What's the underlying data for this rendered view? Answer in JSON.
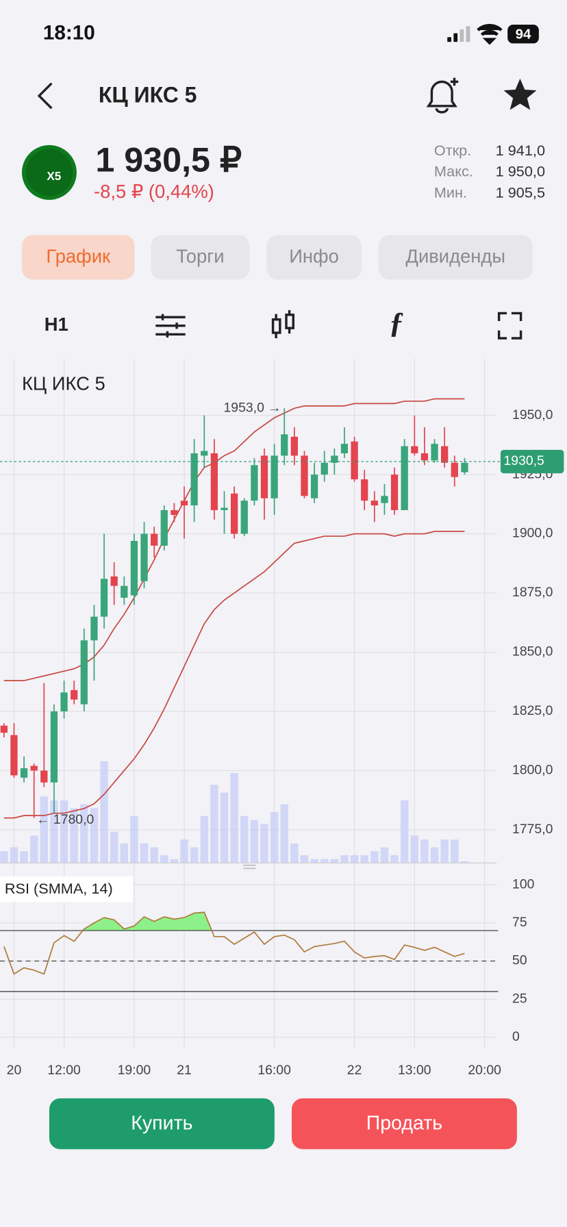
{
  "status": {
    "time": "18:10",
    "battery": "94"
  },
  "header": {
    "title": "КЦ ИКС 5"
  },
  "quote": {
    "logo": "X5",
    "price": "1 930,5 ₽",
    "change": "-8,5 ₽ (0,44%)",
    "stats": [
      {
        "label": "Откр.",
        "value": "1 941,0"
      },
      {
        "label": "Макс.",
        "value": "1 950,0"
      },
      {
        "label": "Мин.",
        "value": "1 905,5"
      }
    ]
  },
  "tabs": {
    "items": [
      "График",
      "Торги",
      "Инфо",
      "Дивиденды"
    ],
    "active": 0
  },
  "toolbar": {
    "interval": "H1"
  },
  "buttons": {
    "buy": "Купить",
    "sell": "Продать"
  },
  "chart_data": [
    {
      "type": "candlestick",
      "title": "КЦ ИКС 5",
      "open": [
        1819,
        1815,
        1797,
        1802,
        1800,
        1795,
        1825,
        1834,
        1828,
        1855,
        1865,
        1882,
        1873,
        1874,
        1880,
        1900,
        1895,
        1910,
        1914,
        1912,
        1933,
        1934,
        1910,
        1917,
        1900,
        1914,
        1933,
        1915,
        1933,
        1941,
        1933,
        1915,
        1925,
        1930,
        1934,
        1939,
        1923,
        1914,
        1913,
        1925,
        1910,
        1937,
        1934,
        1931,
        1937,
        1930,
        1926
      ],
      "high": [
        1820,
        1820,
        1806,
        1803,
        1837,
        1828,
        1838,
        1838,
        1860,
        1870,
        1900,
        1888,
        1882,
        1900,
        1905,
        1903,
        1912,
        1913,
        1920,
        1940,
        1950,
        1940,
        1918,
        1920,
        1915,
        1932,
        1936,
        1938,
        1953,
        1945,
        1935,
        1930,
        1935,
        1936,
        1945,
        1941,
        1927,
        1918,
        1921,
        1928,
        1940,
        1950,
        1945,
        1940,
        1945,
        1933,
        1932
      ],
      "low": [
        1814,
        1797,
        1795,
        1780,
        1793,
        1782,
        1822,
        1828,
        1825,
        1838,
        1860,
        1870,
        1870,
        1870,
        1877,
        1890,
        1893,
        1905,
        1898,
        1905,
        1928,
        1906,
        1900,
        1898,
        1899,
        1912,
        1906,
        1908,
        1929,
        1929,
        1915,
        1913,
        1922,
        1925,
        1932,
        1922,
        1910,
        1905,
        1908,
        1908,
        1910,
        1933,
        1929,
        1930,
        1928,
        1920,
        1925
      ],
      "close": [
        1816,
        1798,
        1801,
        1800,
        1795,
        1825,
        1833,
        1830,
        1855,
        1865,
        1881,
        1878,
        1878,
        1897,
        1900,
        1895,
        1910,
        1908,
        1912,
        1934,
        1935,
        1910,
        1911,
        1900,
        1914,
        1929,
        1915,
        1933,
        1942,
        1933,
        1916,
        1925,
        1930,
        1933,
        1938,
        1923,
        1914,
        1912,
        1916,
        1910,
        1937,
        1934,
        1931,
        1938,
        1930,
        1924,
        1930
      ],
      "volume": [
        15,
        20,
        15,
        35,
        85,
        80,
        80,
        70,
        75,
        70,
        130,
        40,
        25,
        60,
        25,
        20,
        10,
        5,
        30,
        20,
        60,
        100,
        90,
        115,
        60,
        55,
        50,
        65,
        75,
        25,
        10,
        5,
        5,
        5,
        10,
        10,
        10,
        15,
        20,
        10,
        80,
        35,
        30,
        20,
        30,
        30,
        2
      ],
      "bands": {
        "upper": [
          1838,
          1838,
          1838,
          1839,
          1840,
          1841,
          1842,
          1843,
          1845,
          1848,
          1853,
          1860,
          1866,
          1873,
          1881,
          1889,
          1898,
          1906,
          1914,
          1922,
          1928,
          1930,
          1933,
          1935,
          1939,
          1943,
          1946,
          1949,
          1951,
          1953,
          1954,
          1954,
          1954,
          1954,
          1954,
          1955,
          1955,
          1955,
          1955,
          1955,
          1956,
          1956,
          1956,
          1957,
          1957,
          1957,
          1957
        ],
        "lower": [
          1780,
          1780,
          1781,
          1781,
          1781,
          1782,
          1782,
          1783,
          1784,
          1786,
          1790,
          1795,
          1800,
          1805,
          1811,
          1818,
          1826,
          1835,
          1844,
          1853,
          1862,
          1868,
          1872,
          1875,
          1878,
          1881,
          1884,
          1888,
          1892,
          1896,
          1897,
          1898,
          1899,
          1899,
          1899,
          1900,
          1900,
          1900,
          1900,
          1899,
          1900,
          1900,
          1900,
          1901,
          1901,
          1901,
          1901
        ]
      },
      "up_color": "#3aa57a",
      "down_color": "#e3444d",
      "band_color": "#c8473d",
      "volume_color": "#c9d0f7",
      "ylim": [
        1761,
        1974
      ],
      "yticks": [
        {
          "value": 1775,
          "label": "1775,0"
        },
        {
          "value": 1800,
          "label": "1800,0"
        },
        {
          "value": 1825,
          "label": "1825,0"
        },
        {
          "value": 1850,
          "label": "1850,0"
        },
        {
          "value": 1875,
          "label": "1875,0"
        },
        {
          "value": 1900,
          "label": "1900,0"
        },
        {
          "value": 1925,
          "label": "1925,0"
        },
        {
          "value": 1950,
          "label": "1950,0"
        }
      ],
      "xlim": [
        -0.4,
        49.2
      ],
      "xticks": [
        {
          "value": 1,
          "label": "20"
        },
        {
          "value": 6,
          "label": "12:00"
        },
        {
          "value": 13,
          "label": "19:00"
        },
        {
          "value": 18,
          "label": "21"
        },
        {
          "value": 27,
          "label": "16:00"
        },
        {
          "value": 35,
          "label": "22"
        },
        {
          "value": 41,
          "label": "13:00"
        },
        {
          "value": 48,
          "label": "20:00"
        }
      ],
      "last_price": {
        "value": 1930.5,
        "label": "1930,5"
      },
      "last_color": "#2e9e72",
      "annotations": [
        {
          "value": 1953,
          "label": "1953,0 →",
          "side": "left",
          "field": "high"
        },
        {
          "value": 1780,
          "label": "← 1780,0",
          "side": "right",
          "field": "low"
        }
      ]
    },
    {
      "type": "line",
      "title": "RSI (SMMA, 14)",
      "color": "#b07a3a",
      "fill_color": "#8ef08a",
      "values": [
        59.5,
        41.5,
        45.6,
        44,
        41.5,
        62,
        66.7,
        63,
        71,
        75,
        78.5,
        77,
        71,
        73,
        79,
        76,
        79,
        77.5,
        78.5,
        81.5,
        82,
        66,
        66,
        61,
        65,
        69,
        61,
        66,
        67,
        64,
        56,
        59.5,
        60.5,
        61.5,
        63,
        56,
        52,
        53,
        53.5,
        51,
        60.5,
        59,
        57,
        59,
        56,
        53,
        55
      ],
      "ylim": [
        -7.2,
        109.7
      ],
      "yticks": [
        0,
        25,
        50,
        75,
        100
      ],
      "levels": [
        30,
        50,
        70
      ],
      "overbought": 70
    }
  ]
}
